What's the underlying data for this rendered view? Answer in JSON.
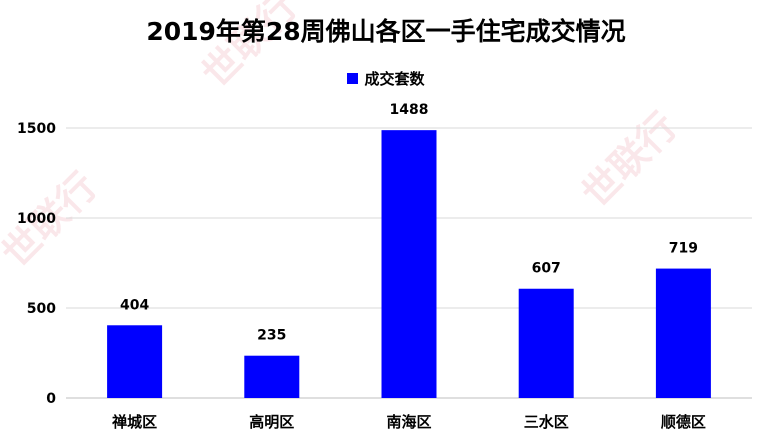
{
  "watermark": "世联行",
  "chart_data": {
    "type": "bar",
    "title": "2019年第28周佛山各区一手住宅成交情况",
    "categories": [
      "禅城区",
      "高明区",
      "南海区",
      "三水区",
      "顺德区"
    ],
    "series": [
      {
        "name": "成交套数",
        "values": [
          404,
          235,
          1488,
          607,
          719
        ],
        "color": "#0000ff"
      }
    ],
    "xlabel": "",
    "ylabel": "",
    "ylim": [
      0,
      1500
    ],
    "yticks": [
      0,
      500,
      1000,
      1500
    ],
    "grid": true,
    "legend": "top",
    "data_labels": true
  }
}
